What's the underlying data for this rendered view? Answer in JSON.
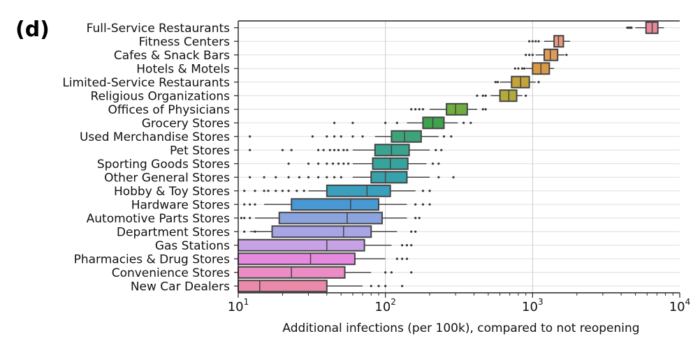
{
  "panel_label": "(d)",
  "chart_data": {
    "type": "boxplot",
    "orientation": "horizontal",
    "xscale": "log",
    "xlim": [
      10,
      10000
    ],
    "xlabel": "Additional infections (per 100k), compared to not reopening",
    "ylabel": "",
    "grid": "vertical",
    "xticks": [
      {
        "value": 10,
        "base": "10",
        "exp": "1"
      },
      {
        "value": 100,
        "base": "10",
        "exp": "2"
      },
      {
        "value": 1000,
        "base": "10",
        "exp": "3"
      },
      {
        "value": 10000,
        "base": "10",
        "exp": "4"
      }
    ],
    "categories": [
      {
        "label": "Full-Service Restaurants",
        "q1": 5900,
        "median": 6500,
        "q3": 7100,
        "lw": 5000,
        "uw": 7800,
        "color": "#e88a9b",
        "outliers": [
          4400,
          4500,
          4600,
          4700
        ]
      },
      {
        "label": "Fitness Centers",
        "q1": 1400,
        "median": 1500,
        "q3": 1620,
        "lw": 1200,
        "uw": 1800,
        "color": "#eb9a82",
        "outliers": [
          950,
          1000,
          1050,
          1100
        ]
      },
      {
        "label": "Cafes & Snack Bars",
        "q1": 1200,
        "median": 1320,
        "q3": 1480,
        "lw": 1050,
        "uw": 1650,
        "color": "#e29a5a",
        "outliers": [
          900,
          950,
          1000,
          1700
        ]
      },
      {
        "label": "Hotels & Motels",
        "q1": 1000,
        "median": 1140,
        "q3": 1300,
        "lw": 900,
        "uw": 1400,
        "color": "#d89a45",
        "outliers": [
          760,
          800,
          850,
          880
        ]
      },
      {
        "label": "Limited-Service Restaurants",
        "q1": 720,
        "median": 830,
        "q3": 950,
        "lw": 600,
        "uw": 1050,
        "color": "#c4a33a",
        "outliers": [
          560,
          580,
          1100
        ]
      },
      {
        "label": "Religious Organizations",
        "q1": 600,
        "median": 690,
        "q3": 780,
        "lw": 520,
        "uw": 850,
        "color": "#b3aa3a",
        "outliers": [
          420,
          460,
          480,
          900
        ]
      },
      {
        "label": "Offices of Physicians",
        "q1": 260,
        "median": 300,
        "q3": 360,
        "lw": 200,
        "uw": 420,
        "color": "#6fae3e",
        "outliers": [
          150,
          160,
          170,
          180,
          460,
          480
        ]
      },
      {
        "label": "Grocery Stores",
        "q1": 180,
        "median": 210,
        "q3": 250,
        "lw": 140,
        "uw": 310,
        "color": "#3fa34d",
        "outliers": [
          45,
          60,
          100,
          120,
          340,
          380
        ]
      },
      {
        "label": "Used Merchandise Stores",
        "q1": 110,
        "median": 135,
        "q3": 175,
        "lw": 85,
        "uw": 230,
        "color": "#3fa37a",
        "outliers": [
          12,
          32,
          40,
          45,
          50,
          60,
          70,
          250,
          280
        ]
      },
      {
        "label": "Pet Stores",
        "q1": 85,
        "median": 110,
        "q3": 145,
        "lw": 60,
        "uw": 200,
        "color": "#3aa38f",
        "outliers": [
          12,
          20,
          23,
          35,
          38,
          42,
          45,
          48,
          52,
          55,
          220,
          240
        ]
      },
      {
        "label": "Sporting Goods Stores",
        "q1": 82,
        "median": 108,
        "q3": 142,
        "lw": 60,
        "uw": 190,
        "color": "#36a39d",
        "outliers": [
          22,
          30,
          35,
          40,
          44,
          48,
          52,
          56,
          210,
          230
        ]
      },
      {
        "label": "Other General Stores",
        "q1": 80,
        "median": 100,
        "q3": 140,
        "lw": 60,
        "uw": 200,
        "color": "#37a2ac",
        "outliers": [
          12,
          15,
          18,
          22,
          26,
          30,
          35,
          40,
          45,
          50,
          230,
          290
        ]
      },
      {
        "label": "Hobby & Toy Stores",
        "q1": 40,
        "median": 75,
        "q3": 108,
        "lw": 30,
        "uw": 160,
        "color": "#3a9fbc",
        "outliers": [
          11,
          13,
          15,
          16,
          18,
          20,
          22,
          25,
          28,
          180,
          200
        ]
      },
      {
        "label": "Hardware Stores",
        "q1": 23,
        "median": 58,
        "q3": 90,
        "lw": 15,
        "uw": 140,
        "color": "#4898d4",
        "outliers": [
          11,
          12,
          13,
          160,
          180,
          200
        ]
      },
      {
        "label": "Automotive Parts Stores",
        "q1": 19,
        "median": 55,
        "q3": 95,
        "lw": 13,
        "uw": 140,
        "color": "#8ba4e0",
        "outliers": [
          10.5,
          11,
          12,
          160,
          170
        ]
      },
      {
        "label": "Department Stores",
        "q1": 17,
        "median": 52,
        "q3": 80,
        "lw": 12,
        "uw": 120,
        "color": "#a7a5e5",
        "outliers": [
          11,
          13,
          150,
          160
        ]
      },
      {
        "label": "Gas Stations",
        "q1": 10,
        "median": 40,
        "q3": 72,
        "lw": 10,
        "uw": 110,
        "color": "#c7a3e6",
        "outliers": [
          130,
          140,
          150
        ]
      },
      {
        "label": "Pharmacies & Drug Stores",
        "q1": 10,
        "median": 31,
        "q3": 62,
        "lw": 10,
        "uw": 100,
        "color": "#e68ae0",
        "outliers": [
          120,
          130,
          140
        ]
      },
      {
        "label": "Convenience Stores",
        "q1": 10,
        "median": 23,
        "q3": 53,
        "lw": 10,
        "uw": 80,
        "color": "#eb8cc4",
        "outliers": [
          100,
          110,
          150
        ]
      },
      {
        "label": "New Car Dealers",
        "q1": 10,
        "median": 14,
        "q3": 40,
        "lw": 10,
        "uw": 70,
        "color": "#eb8aa8",
        "outliers": [
          80,
          90,
          100,
          130
        ]
      }
    ]
  }
}
